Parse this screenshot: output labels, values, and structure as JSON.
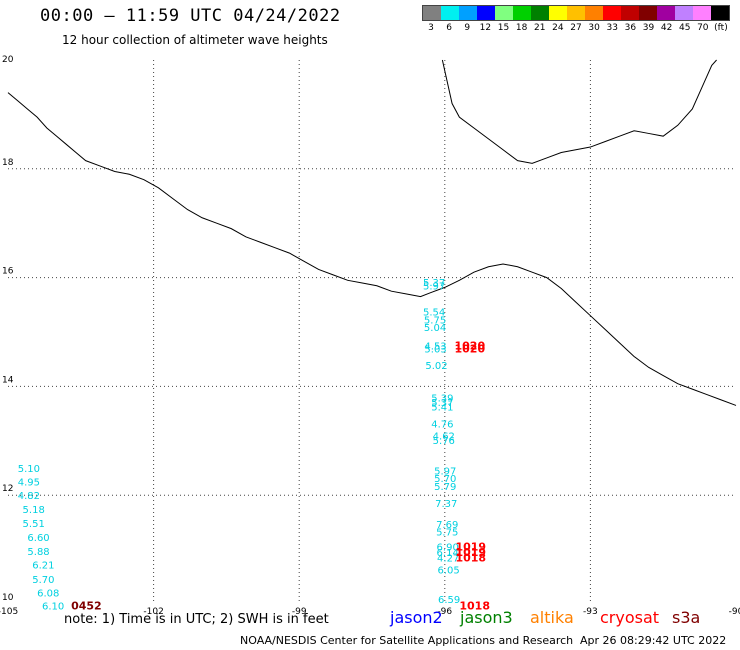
{
  "header": {
    "title": "00:00 – 11:59 UTC 04/24/2022",
    "subtitle": "12 hour collection of altimeter wave heights"
  },
  "legend": {
    "colors": [
      "#808080",
      "#00f0f0",
      "#00a0ff",
      "#0000ff",
      "#80ff80",
      "#00d000",
      "#008000",
      "#ffff00",
      "#ffc000",
      "#ff8000",
      "#ff0000",
      "#c00000",
      "#800000",
      "#a000a0",
      "#c080ff",
      "#ff80ff",
      "#000000"
    ],
    "labels": [
      "3",
      "6",
      "9",
      "12",
      "15",
      "18",
      "21",
      "24",
      "27",
      "30",
      "33",
      "36",
      "39",
      "42",
      "45",
      "70",
      "(ft)"
    ]
  },
  "axes": {
    "lat_labels": [
      "20",
      "18",
      "16",
      "14",
      "12",
      "10"
    ],
    "lon_labels": [
      "-105",
      "-102",
      "-99",
      "-96",
      "-93",
      "-90"
    ]
  },
  "observations": {
    "swh": [
      {
        "v": "5.37",
        "lon": -96.45,
        "lat": 15.85
      },
      {
        "v": "5.97",
        "lon": -96.45,
        "lat": 15.78
      },
      {
        "v": "5.54",
        "lon": -96.45,
        "lat": 15.3
      },
      {
        "v": "5.75",
        "lon": -96.43,
        "lat": 15.16
      },
      {
        "v": "5.04",
        "lon": -96.43,
        "lat": 15.02
      },
      {
        "v": "4.53",
        "lon": -96.42,
        "lat": 14.68
      },
      {
        "v": "5.03",
        "lon": -96.42,
        "lat": 14.62
      },
      {
        "v": "5.02",
        "lon": -96.4,
        "lat": 14.32
      },
      {
        "v": "5.39",
        "lon": -96.28,
        "lat": 13.72
      },
      {
        "v": "5.37",
        "lon": -96.28,
        "lat": 13.64
      },
      {
        "v": "5.41",
        "lon": -96.28,
        "lat": 13.56
      },
      {
        "v": "4.76",
        "lon": -96.28,
        "lat": 13.24
      },
      {
        "v": "4.62",
        "lon": -96.25,
        "lat": 13.02
      },
      {
        "v": "5.76",
        "lon": -96.25,
        "lat": 12.94
      },
      {
        "v": "5.97",
        "lon": -96.22,
        "lat": 12.38
      },
      {
        "v": "5.70",
        "lon": -96.22,
        "lat": 12.24
      },
      {
        "v": "5.79",
        "lon": -96.22,
        "lat": 12.1
      },
      {
        "v": "7.37",
        "lon": -96.2,
        "lat": 11.78
      },
      {
        "v": "7.69",
        "lon": -96.18,
        "lat": 11.4
      },
      {
        "v": "5.75",
        "lon": -96.18,
        "lat": 11.26
      },
      {
        "v": "6.90",
        "lon": -96.17,
        "lat": 10.98
      },
      {
        "v": "6.14",
        "lon": -96.17,
        "lat": 10.88
      },
      {
        "v": "4.27",
        "lon": -96.16,
        "lat": 10.78
      },
      {
        "v": "6.05",
        "lon": -96.15,
        "lat": 10.56
      },
      {
        "v": "6.59",
        "lon": -96.14,
        "lat": 10.02
      },
      {
        "v": "5.10",
        "lon": -104.8,
        "lat": 12.43
      },
      {
        "v": "4.95",
        "lon": -104.8,
        "lat": 12.18
      },
      {
        "v": "4.82",
        "lon": -104.8,
        "lat": 11.93
      },
      {
        "v": "5.18",
        "lon": -104.7,
        "lat": 11.67
      },
      {
        "v": "5.51",
        "lon": -104.7,
        "lat": 11.42
      },
      {
        "v": "6.60",
        "lon": -104.6,
        "lat": 11.16
      },
      {
        "v": "5.88",
        "lon": -104.6,
        "lat": 10.9
      },
      {
        "v": "6.21",
        "lon": -104.5,
        "lat": 10.65
      },
      {
        "v": "5.70",
        "lon": -104.5,
        "lat": 10.39
      },
      {
        "v": "6.08",
        "lon": -104.4,
        "lat": 10.14
      },
      {
        "v": "6.10",
        "lon": -104.3,
        "lat": 9.9
      }
    ],
    "time": [
      {
        "v": "1020",
        "lon": -95.8,
        "lat": 14.68,
        "c": "#ff0000"
      },
      {
        "v": "1020",
        "lon": -95.8,
        "lat": 14.62,
        "c": "#ff0000"
      },
      {
        "v": "1019",
        "lon": -95.78,
        "lat": 10.98,
        "c": "#ff0000"
      },
      {
        "v": "1019",
        "lon": -95.78,
        "lat": 10.88,
        "c": "#ff0000"
      },
      {
        "v": "1018",
        "lon": -95.78,
        "lat": 10.78,
        "c": "#ff0000"
      },
      {
        "v": "1018",
        "lon": -95.7,
        "lat": 9.9,
        "c": "#ff0000"
      },
      {
        "v": "0452",
        "lon": -103.7,
        "lat": 9.9,
        "c": "#800000"
      }
    ]
  },
  "footer": {
    "note": "note: 1) Time is in UTC; 2) SWH is in feet",
    "satellites": [
      {
        "name": "jason2",
        "color": "#0000ff"
      },
      {
        "name": "jason3",
        "color": "#008000"
      },
      {
        "name": "altika",
        "color": "#ff8000"
      },
      {
        "name": "cryosat",
        "color": "#ff0000"
      },
      {
        "name": "s3a",
        "color": "#800000"
      }
    ],
    "credit": "NOAA/NESDIS Center for Satellite Applications and Research",
    "timestamp": "Apr 26 08:29:42 UTC 2022"
  },
  "colors": {
    "swh_text": "#00d0e0",
    "coast": "#000000",
    "grid": "#555555"
  }
}
